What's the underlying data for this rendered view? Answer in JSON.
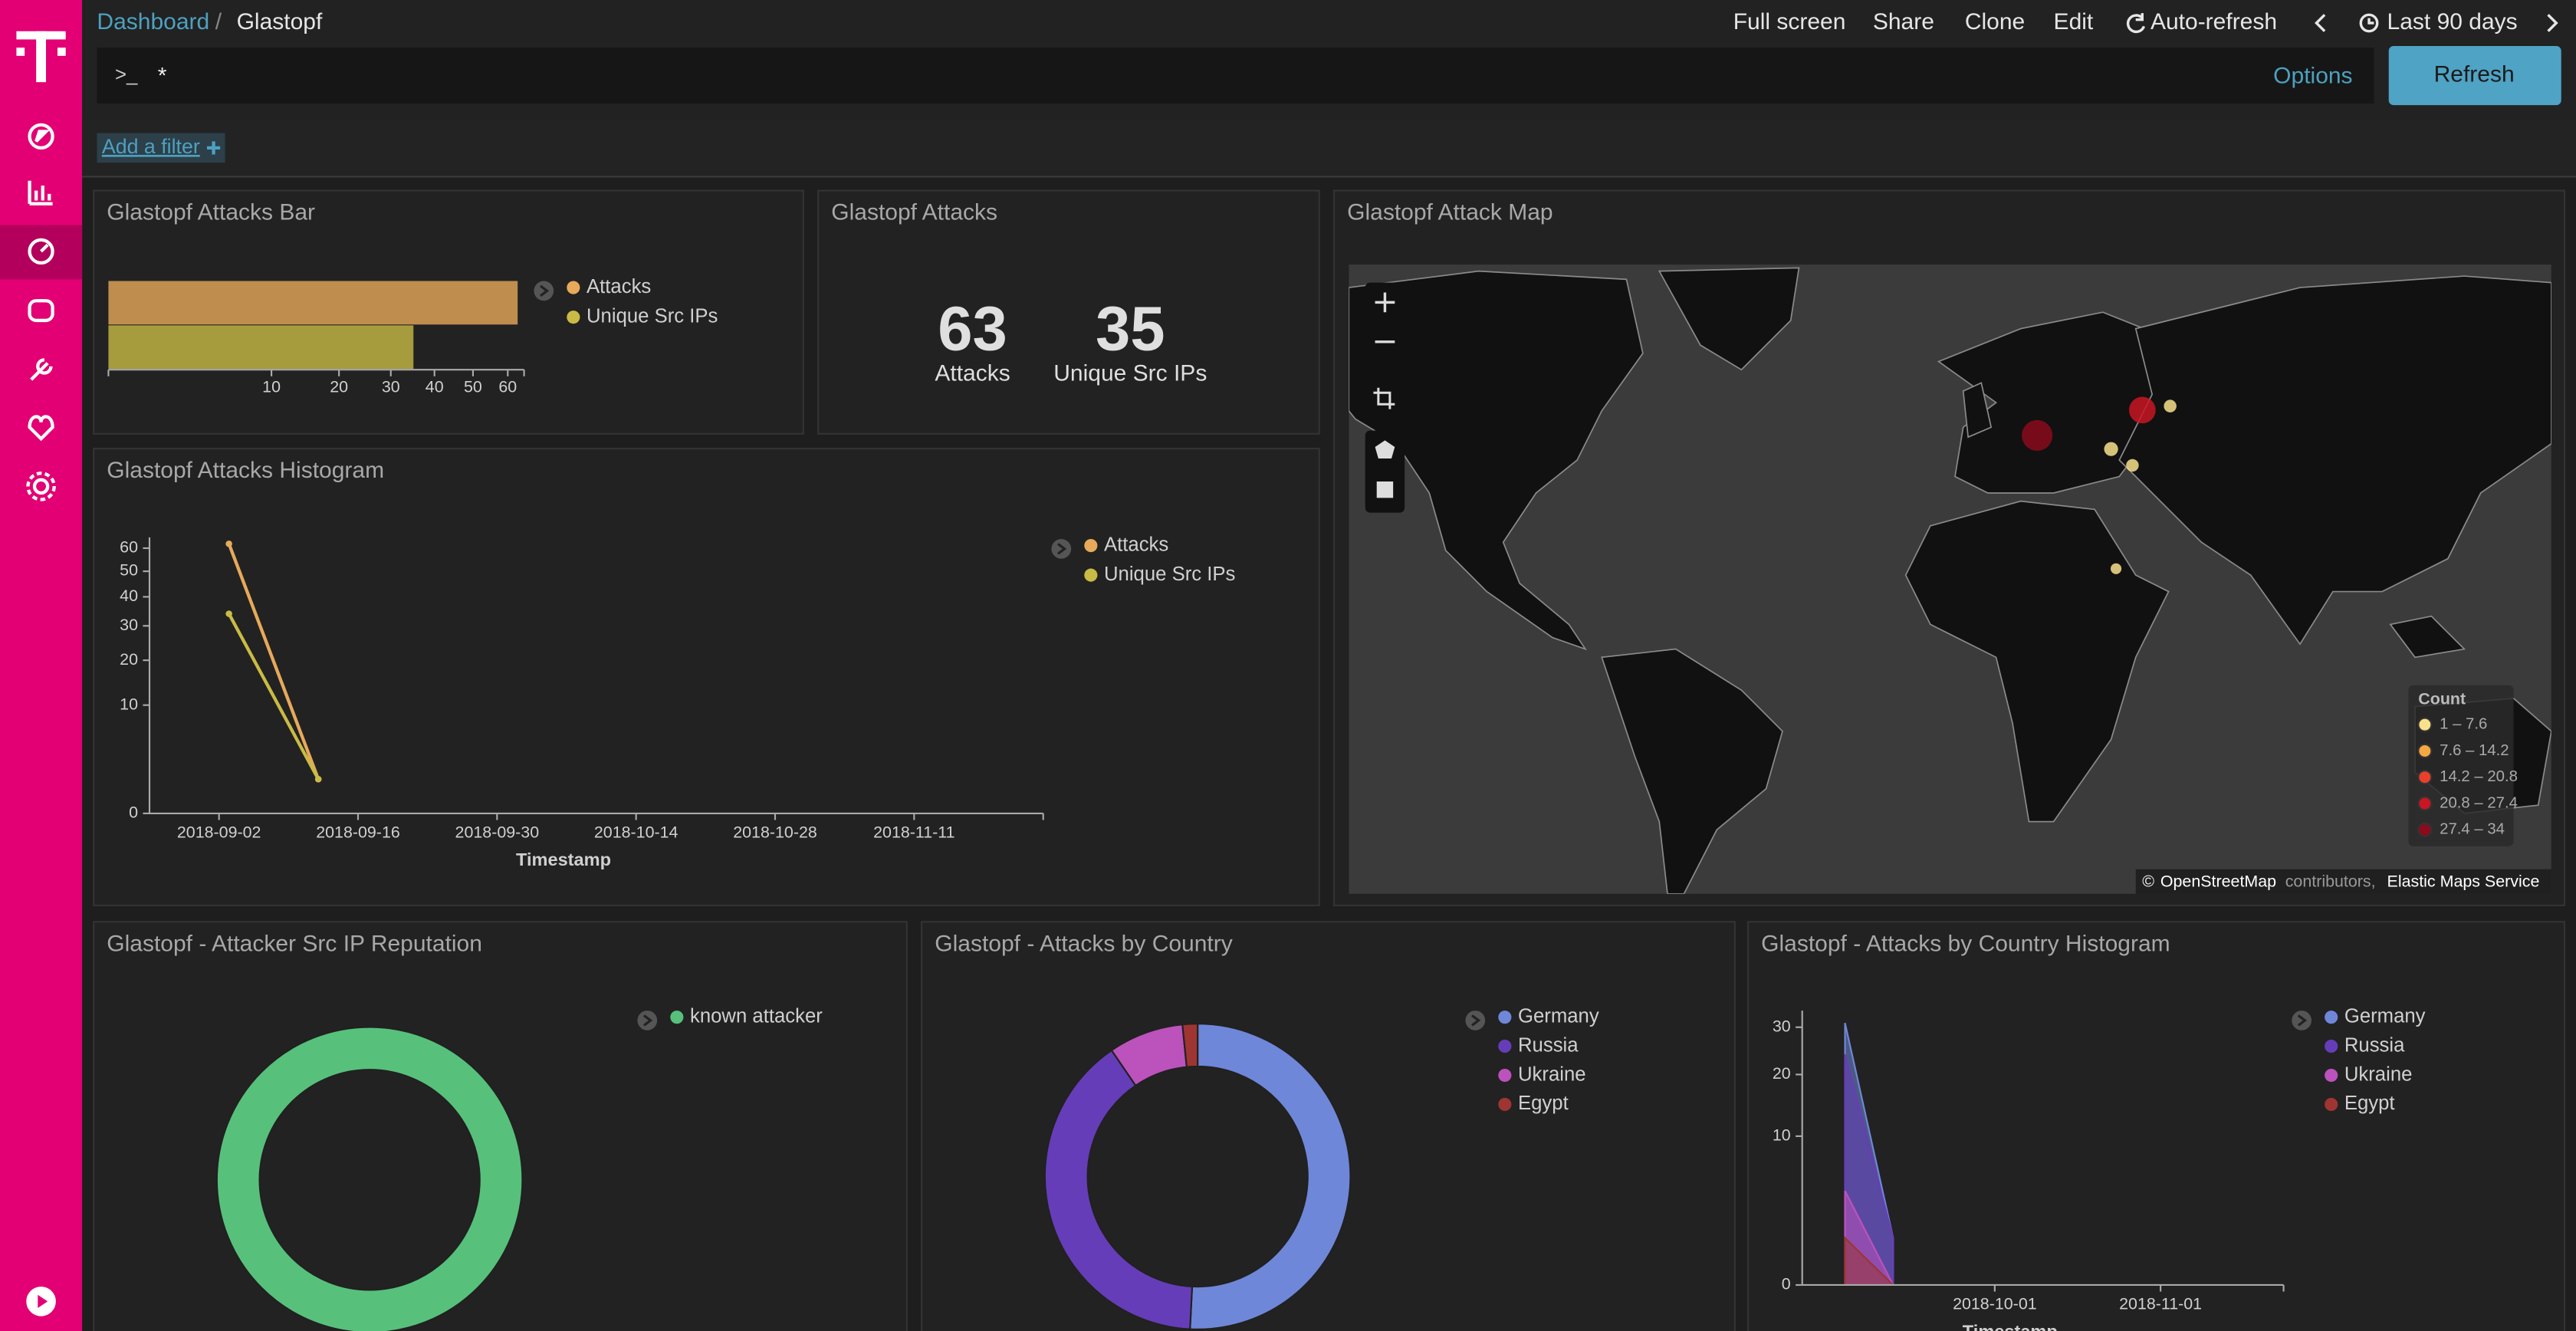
{
  "header": {
    "breadcrumbs": [
      "Dashboard",
      "Glastopf"
    ],
    "separator": "/",
    "menu": [
      "Full screen",
      "Share",
      "Clone",
      "Edit",
      "Auto-refresh",
      "Last 90 days"
    ]
  },
  "query_bar": {
    "prompt": ">_",
    "query": "*",
    "options": "Options",
    "button": "Refresh"
  },
  "filter_bar": {
    "add_filter": "Add a filter"
  },
  "panels": [
    {
      "title": "Glastopf Attacks Bar",
      "type": "bar",
      "orientation": "horizontal",
      "scale": "sqrt",
      "xlim": [
        0,
        65
      ],
      "xticks": [
        10,
        20,
        30,
        40,
        50,
        60
      ],
      "series": [
        {
          "name": "Attacks",
          "color": "#e7a95a",
          "values": [
            63
          ]
        },
        {
          "name": "Unique Src IPs",
          "color": "#c9bb45",
          "values": [
            35
          ]
        }
      ]
    },
    {
      "title": "Glastopf Attacks",
      "type": "metric",
      "metrics": [
        {
          "value": 63,
          "label": "Attacks"
        },
        {
          "value": 35,
          "label": "Unique Src IPs"
        }
      ]
    },
    {
      "title": "Glastopf Attack Map",
      "type": "map",
      "legend": {
        "title": "Count",
        "bins": [
          1,
          7.6,
          14.2,
          20.8,
          27.4,
          34
        ],
        "labels": [
          "1 – 7.6",
          "7.6 – 14.2",
          "14.2 – 20.8",
          "20.8 – 27.4",
          "27.4 – 34"
        ],
        "colors": [
          "#f9e08b",
          "#f5a742",
          "#e8402c",
          "#c81622",
          "#8b0a1c"
        ]
      },
      "points": [
        {
          "lat": 51.0,
          "lon": 10.0,
          "count": 32
        },
        {
          "lat": 55.0,
          "lon": 37.6,
          "count": 22
        },
        {
          "lat": 55.6,
          "lon": 44.9,
          "count": 2
        },
        {
          "lat": 48.7,
          "lon": 29.4,
          "count": 3
        },
        {
          "lat": 45.8,
          "lon": 35.0,
          "count": 2
        },
        {
          "lat": 23.8,
          "lon": 30.7,
          "count": 1
        }
      ],
      "attribution": [
        "©",
        "OpenStreetMap",
        "contributors,",
        "Elastic Maps Service"
      ]
    },
    {
      "title": "Glastopf Attacks Histogram",
      "type": "line",
      "scale": "sqrt",
      "x": [
        "2018-09-03",
        "2018-09-12"
      ],
      "xlim": [
        "2018-08-26",
        "2018-11-24"
      ],
      "xticks": [
        "2018-09-02",
        "2018-09-16",
        "2018-09-30",
        "2018-10-14",
        "2018-10-28",
        "2018-11-11"
      ],
      "ylim": [
        0,
        65
      ],
      "yticks": [
        0,
        10,
        20,
        30,
        40,
        50,
        60
      ],
      "x_label": "Timestamp",
      "series": [
        {
          "name": "Attacks",
          "color": "#e7a95a",
          "values": [
            62,
            1
          ]
        },
        {
          "name": "Unique Src IPs",
          "color": "#c9bb45",
          "values": [
            34,
            1
          ]
        }
      ]
    },
    {
      "title": "Glastopf - Attacker Src IP Reputation",
      "type": "pie",
      "donut": true,
      "categories": [
        "known attacker"
      ],
      "values": [
        35
      ],
      "colors": [
        "#57c17b"
      ]
    },
    {
      "title": "Glastopf - Attacks by Country",
      "type": "pie",
      "donut": true,
      "categories": [
        "Germany",
        "Russia",
        "Ukraine",
        "Egypt"
      ],
      "values": [
        32,
        25,
        5,
        1
      ],
      "colors": [
        "#6f87d8",
        "#663db8",
        "#bc52bc",
        "#9e3533"
      ]
    },
    {
      "title": "Glastopf - Attacks by Country Histogram",
      "type": "area",
      "scale": "sqrt",
      "x": [
        "2018-09-03",
        "2018-09-12"
      ],
      "xlim": [
        "2018-08-26",
        "2018-11-24"
      ],
      "xticks": [
        "2018-10-01",
        "2018-11-01"
      ],
      "ylim": [
        0,
        34
      ],
      "yticks": [
        0,
        10,
        20,
        30
      ],
      "x_label": "Timestamp",
      "series": [
        {
          "name": "Germany",
          "color": "#6f87d8",
          "values": [
            31,
            1
          ]
        },
        {
          "name": "Russia",
          "color": "#663db8",
          "values": [
            24,
            1
          ]
        },
        {
          "name": "Ukraine",
          "color": "#bc52bc",
          "values": [
            4,
            0
          ]
        },
        {
          "name": "Egypt",
          "color": "#9e3533",
          "values": [
            1,
            0
          ]
        }
      ]
    }
  ]
}
